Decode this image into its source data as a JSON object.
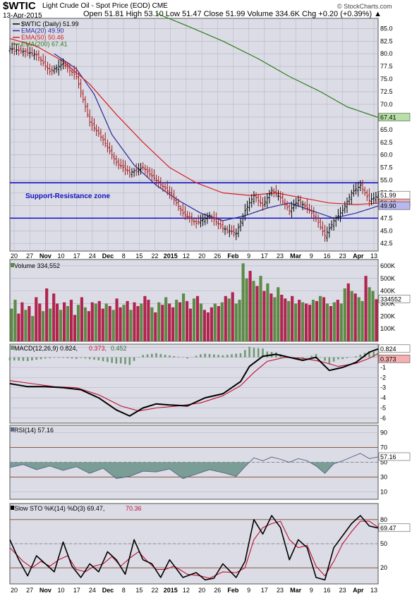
{
  "header": {
    "symbol": "$WTIC",
    "name": "Light Crude Oil - Spot Price (EOD) CME",
    "date": "13-Apr-2015",
    "ohlc_line": "Open 51.81  High 53.10  Low 51.47  Close 51.99  Volume 334.6K  Chg +0.20 (+0.39%) ▲",
    "source": "© StockCharts.com"
  },
  "colors": {
    "panel_bg": "#dcdce6",
    "grid": "#b4b4c4",
    "ema20": "#2a2a9a",
    "ema50": "#d42020",
    "ema200": "#2e7d1a",
    "support_line": "#1010c0",
    "up": "#5d8a46",
    "down": "#b0254e",
    "macd_line": "#000000",
    "signal_line": "#c01030",
    "hist": "#6e9a72",
    "rsi_line": "#5a6a8a",
    "rsi_fill": "#5a8a7a",
    "sto_k": "#000000",
    "sto_d": "#c01030"
  },
  "chart_data": [
    {
      "type": "ohlc",
      "title": "$WTIC (Daily) 51.99",
      "legend": [
        {
          "name": "$WTIC (Daily) 51.99",
          "color": "#000000"
        },
        {
          "name": "EMA(20) 49.90",
          "color": "#2a2a9a"
        },
        {
          "name": "EMA(50) 50.46",
          "color": "#d42020"
        },
        {
          "name": "EMA(200) 67.41",
          "color": "#2e7d1a"
        }
      ],
      "ylim": [
        41,
        87
      ],
      "yticks": [
        42.5,
        45.0,
        47.5,
        50.0,
        52.5,
        55.0,
        57.5,
        60.0,
        62.5,
        65.0,
        67.5,
        70.0,
        72.5,
        75.0,
        77.5,
        80.0,
        82.5,
        85.0
      ],
      "ytick_labels": [
        "42.5",
        "45.0",
        "47.5",
        "50.0",
        "52.5",
        "55.0",
        "57.5",
        "60.0",
        "62.5",
        "65.0",
        "67.5",
        "70.0",
        "72.5",
        "75.0",
        "77.5",
        "80.0",
        "82.5",
        "85.0"
      ],
      "x_labels": [
        "20",
        "27",
        "Nov",
        "10",
        "17",
        "24",
        "Dec",
        "8",
        "15",
        "22",
        "2015",
        "12",
        "20",
        "26",
        "Feb",
        "9",
        "17",
        "23",
        "Mar",
        "9",
        "16",
        "23",
        "Apr",
        "13"
      ],
      "price_path": [
        [
          0,
          81.0
        ],
        [
          6,
          80.5
        ],
        [
          12,
          79.8
        ],
        [
          18,
          76.5
        ],
        [
          24,
          78.0
        ],
        [
          30,
          75.5
        ],
        [
          36,
          66.5
        ],
        [
          42,
          63.0
        ],
        [
          48,
          58.5
        ],
        [
          54,
          56.5
        ],
        [
          60,
          57.5
        ],
        [
          66,
          55.0
        ],
        [
          72,
          52.5
        ],
        [
          78,
          48.5
        ],
        [
          84,
          46.5
        ],
        [
          90,
          48.0
        ],
        [
          96,
          45.5
        ],
        [
          102,
          44.5
        ],
        [
          106,
          49.0
        ],
        [
          110,
          52.0
        ],
        [
          114,
          50.0
        ],
        [
          118,
          53.0
        ],
        [
          122,
          51.5
        ],
        [
          126,
          49.0
        ],
        [
          130,
          51.0
        ],
        [
          134,
          49.5
        ],
        [
          138,
          47.5
        ],
        [
          142,
          44.0
        ],
        [
          146,
          47.0
        ],
        [
          150,
          49.0
        ],
        [
          154,
          52.5
        ],
        [
          158,
          54.0
        ],
        [
          162,
          51.0
        ],
        [
          166,
          51.99
        ]
      ],
      "ema_series": [
        {
          "name": "EMA(20)",
          "value": 49.9,
          "points": [
            [
              20,
              80.0
            ],
            [
              30,
              77.0
            ],
            [
              38,
              72.0
            ],
            [
              46,
              64.0
            ],
            [
              56,
              58.0
            ],
            [
              66,
              54.0
            ],
            [
              76,
              51.0
            ],
            [
              86,
              48.5
            ],
            [
              96,
              47.0
            ],
            [
              106,
              48.0
            ],
            [
              116,
              49.5
            ],
            [
              126,
              50.5
            ],
            [
              136,
              49.0
            ],
            [
              146,
              47.5
            ],
            [
              156,
              48.5
            ],
            [
              166,
              49.9
            ]
          ]
        },
        {
          "name": "EMA(50)",
          "value": 50.46,
          "points": [
            [
              0,
              83.0
            ],
            [
              12,
              81.5
            ],
            [
              24,
              78.5
            ],
            [
              36,
              74.0
            ],
            [
              48,
              68.0
            ],
            [
              60,
              62.5
            ],
            [
              72,
              57.5
            ],
            [
              84,
              54.5
            ],
            [
              96,
              52.5
            ],
            [
              108,
              52.0
            ],
            [
              120,
              52.5
            ],
            [
              132,
              51.5
            ],
            [
              144,
              50.5
            ],
            [
              156,
              50.2
            ],
            [
              166,
              50.46
            ]
          ]
        },
        {
          "name": "EMA(200)",
          "value": 67.41,
          "points": [
            [
              66,
              88.0
            ],
            [
              80,
              85.5
            ],
            [
              96,
              82.5
            ],
            [
              112,
              79.0
            ],
            [
              126,
              75.5
            ],
            [
              140,
              72.5
            ],
            [
              152,
              69.5
            ],
            [
              166,
              67.41
            ]
          ]
        }
      ],
      "value_tags": [
        51.99,
        50.46,
        49.9,
        67.41
      ],
      "support_resistance": {
        "label": "Support-Resistance zone",
        "upper": 54.5,
        "lower": 47.5
      }
    },
    {
      "type": "bar",
      "title": "Volume 334,552",
      "ylim": [
        0,
        650000
      ],
      "yticks": [
        100000,
        200000,
        300000,
        400000,
        500000,
        600000
      ],
      "ytick_labels": [
        "100K",
        "200K",
        "300K",
        "400K",
        "500K",
        "600K"
      ],
      "value_tag": "334552",
      "values": [
        260000,
        330000,
        220000,
        310000,
        250000,
        280000,
        200000,
        350000,
        300000,
        240000,
        420000,
        260000,
        380000,
        300000,
        250000,
        310000,
        280000,
        330000,
        210000,
        290000,
        350000,
        270000,
        240000,
        310000,
        300000,
        320000,
        260000,
        300000,
        280000,
        250000,
        340000,
        270000,
        290000,
        320000,
        250000,
        310000,
        280000,
        300000,
        360000,
        330000,
        270000,
        230000,
        310000,
        290000,
        350000,
        300000,
        270000,
        330000,
        310000,
        380000,
        320000,
        260000,
        340000,
        360000,
        300000,
        250000,
        230000,
        270000,
        300000,
        280000,
        310000,
        360000,
        340000,
        390000,
        300000,
        330000,
        620000,
        500000,
        560000,
        480000,
        440000,
        520000,
        400000,
        460000,
        380000,
        350000,
        430000,
        370000,
        340000,
        320000,
        360000,
        300000,
        330000,
        310000,
        300000,
        290000,
        330000,
        320000,
        360000,
        350000,
        300000,
        280000,
        310000,
        330000,
        300000,
        420000,
        460000,
        400000,
        380000,
        350000,
        320000,
        520000,
        430000,
        400000,
        334552
      ],
      "colors_up_down": "UUDDUDUDDUDUDDUDUDDUDUDDUDDUDUDDUDUDDUDDUDUDUDDUDUDDUDUDDDUDUDUDUUUUDUDUDUDUUDDUDUDUDDUDUDUDUDUUDUDUUD"
    },
    {
      "type": "line",
      "title": "MACD(12,26,9) 0.824, 0.373, 0.452",
      "legend": [
        {
          "name": "MACD(12,26,9)",
          "value": "0.824",
          "color": "#000000"
        },
        {
          "name": "signal",
          "value": "0.373",
          "color": "#c01030"
        },
        {
          "name": "histogram",
          "value": "0.452",
          "color": "#6e9a72"
        }
      ],
      "ylim": [
        -6.5,
        1.3
      ],
      "yticks": [
        -6,
        -5,
        -4,
        -3,
        -2,
        -1,
        0,
        1
      ],
      "ytick_labels": [
        "-6",
        "-5",
        "-4",
        "-3",
        "-2",
        "-1",
        "0",
        "1"
      ],
      "value_tags": [
        "0.824",
        "0.373"
      ],
      "macd_points": [
        [
          0,
          -2.6
        ],
        [
          8,
          -2.9
        ],
        [
          16,
          -2.9
        ],
        [
          24,
          -3.0
        ],
        [
          32,
          -3.2
        ],
        [
          40,
          -4.0
        ],
        [
          48,
          -5.2
        ],
        [
          54,
          -5.8
        ],
        [
          60,
          -5.0
        ],
        [
          66,
          -4.6
        ],
        [
          72,
          -4.7
        ],
        [
          80,
          -4.8
        ],
        [
          88,
          -4.0
        ],
        [
          96,
          -3.6
        ],
        [
          104,
          -2.4
        ],
        [
          108,
          -0.9
        ],
        [
          114,
          0.1
        ],
        [
          120,
          0.3
        ],
        [
          126,
          0.0
        ],
        [
          132,
          -0.3
        ],
        [
          138,
          0.0
        ],
        [
          144,
          -1.3
        ],
        [
          150,
          -1.0
        ],
        [
          156,
          -0.5
        ],
        [
          162,
          0.5
        ],
        [
          166,
          0.824
        ]
      ],
      "signal_points": [
        [
          0,
          -2.3
        ],
        [
          10,
          -2.6
        ],
        [
          20,
          -2.9
        ],
        [
          30,
          -3.0
        ],
        [
          40,
          -3.7
        ],
        [
          50,
          -4.8
        ],
        [
          58,
          -5.3
        ],
        [
          66,
          -5.0
        ],
        [
          76,
          -4.8
        ],
        [
          86,
          -4.5
        ],
        [
          96,
          -3.8
        ],
        [
          104,
          -2.8
        ],
        [
          110,
          -1.5
        ],
        [
          116,
          -0.4
        ],
        [
          124,
          0.0
        ],
        [
          132,
          -0.1
        ],
        [
          140,
          -0.4
        ],
        [
          148,
          -0.9
        ],
        [
          156,
          -0.6
        ],
        [
          162,
          -0.1
        ],
        [
          166,
          0.373
        ]
      ]
    },
    {
      "type": "line",
      "title": "RSI(14) 57.16",
      "ylim": [
        0,
        100
      ],
      "yticks": [
        10,
        30,
        50,
        70,
        90
      ],
      "ytick_labels": [
        "10",
        "30",
        "50",
        "70",
        "90"
      ],
      "reference_lines": [
        30,
        70
      ],
      "value_tag": "57.16",
      "points": [
        [
          0,
          43
        ],
        [
          6,
          47
        ],
        [
          12,
          40
        ],
        [
          18,
          45
        ],
        [
          24,
          39
        ],
        [
          30,
          44
        ],
        [
          36,
          35
        ],
        [
          42,
          42
        ],
        [
          48,
          28
        ],
        [
          54,
          31
        ],
        [
          60,
          38
        ],
        [
          66,
          37
        ],
        [
          72,
          41
        ],
        [
          78,
          28
        ],
        [
          84,
          34
        ],
        [
          90,
          40
        ],
        [
          96,
          36
        ],
        [
          102,
          31
        ],
        [
          106,
          44
        ],
        [
          110,
          56
        ],
        [
          114,
          52
        ],
        [
          118,
          57
        ],
        [
          122,
          54
        ],
        [
          126,
          50
        ],
        [
          130,
          55
        ],
        [
          134,
          52
        ],
        [
          138,
          45
        ],
        [
          142,
          35
        ],
        [
          146,
          48
        ],
        [
          150,
          52
        ],
        [
          154,
          57
        ],
        [
          158,
          62
        ],
        [
          162,
          55
        ],
        [
          166,
          57.16
        ]
      ]
    },
    {
      "type": "line",
      "title": "Slow STO %K(14) %D(3) 69.47, 70.36",
      "legend": [
        {
          "name": "%K(14)",
          "value": "69.47",
          "color": "#000000"
        },
        {
          "name": "%D(3)",
          "value": "70.36",
          "color": "#c01030"
        }
      ],
      "ylim": [
        0,
        100
      ],
      "yticks": [
        20,
        50,
        80
      ],
      "ytick_labels": [
        "20",
        "50",
        "80"
      ],
      "value_tag": "69.47",
      "k_points": [
        [
          0,
          55
        ],
        [
          4,
          30
        ],
        [
          8,
          10
        ],
        [
          12,
          35
        ],
        [
          16,
          25
        ],
        [
          20,
          15
        ],
        [
          24,
          52
        ],
        [
          28,
          22
        ],
        [
          32,
          8
        ],
        [
          36,
          25
        ],
        [
          40,
          15
        ],
        [
          44,
          40
        ],
        [
          48,
          30
        ],
        [
          52,
          12
        ],
        [
          56,
          55
        ],
        [
          60,
          30
        ],
        [
          64,
          25
        ],
        [
          68,
          8
        ],
        [
          72,
          30
        ],
        [
          78,
          8
        ],
        [
          84,
          14
        ],
        [
          88,
          5
        ],
        [
          92,
          7
        ],
        [
          96,
          25
        ],
        [
          102,
          8
        ],
        [
          106,
          28
        ],
        [
          110,
          80
        ],
        [
          114,
          62
        ],
        [
          118,
          85
        ],
        [
          122,
          70
        ],
        [
          126,
          30
        ],
        [
          130,
          55
        ],
        [
          134,
          45
        ],
        [
          138,
          8
        ],
        [
          142,
          5
        ],
        [
          146,
          45
        ],
        [
          150,
          60
        ],
        [
          154,
          75
        ],
        [
          158,
          85
        ],
        [
          162,
          72
        ],
        [
          166,
          69.47
        ]
      ],
      "d_points": [
        [
          0,
          45
        ],
        [
          6,
          28
        ],
        [
          10,
          20
        ],
        [
          14,
          28
        ],
        [
          18,
          22
        ],
        [
          22,
          30
        ],
        [
          26,
          35
        ],
        [
          30,
          18
        ],
        [
          34,
          15
        ],
        [
          38,
          22
        ],
        [
          42,
          25
        ],
        [
          46,
          34
        ],
        [
          50,
          22
        ],
        [
          54,
          32
        ],
        [
          58,
          40
        ],
        [
          62,
          28
        ],
        [
          66,
          18
        ],
        [
          70,
          18
        ],
        [
          74,
          22
        ],
        [
          80,
          12
        ],
        [
          86,
          10
        ],
        [
          90,
          7
        ],
        [
          96,
          15
        ],
        [
          102,
          14
        ],
        [
          106,
          20
        ],
        [
          110,
          55
        ],
        [
          114,
          70
        ],
        [
          118,
          75
        ],
        [
          122,
          78
        ],
        [
          126,
          55
        ],
        [
          130,
          45
        ],
        [
          134,
          48
        ],
        [
          138,
          22
        ],
        [
          142,
          10
        ],
        [
          146,
          28
        ],
        [
          150,
          50
        ],
        [
          154,
          65
        ],
        [
          158,
          78
        ],
        [
          162,
          78
        ],
        [
          166,
          70.36
        ]
      ]
    }
  ]
}
